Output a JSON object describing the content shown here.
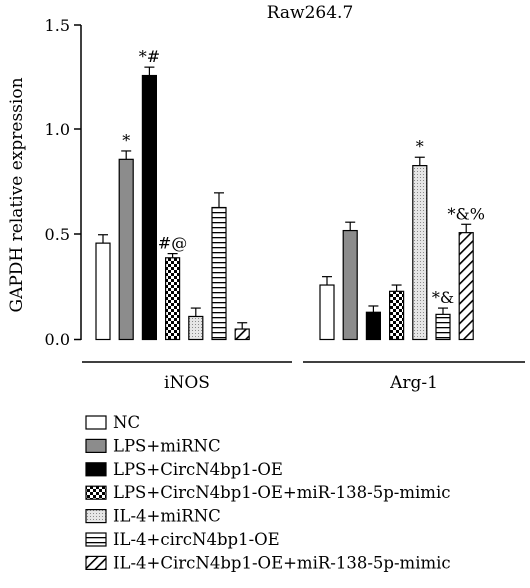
{
  "chart_data": {
    "type": "bar",
    "title": "Raw264.7",
    "ylabel": "GAPDH relative expression",
    "xlabel": "",
    "ylim": [
      0,
      1.5
    ],
    "yticks": [
      "0.0",
      "0.5",
      "1.0",
      "1.5"
    ],
    "groups": [
      "iNOS",
      "Arg-1"
    ],
    "grid": false,
    "legend_position": "bottom",
    "series": [
      {
        "name": "NC",
        "pattern": "white",
        "values": [
          0.46,
          0.26
        ],
        "errors": [
          0.04,
          0.04
        ],
        "annotations": [
          "",
          ""
        ]
      },
      {
        "name": "LPS+miRNC",
        "pattern": "gray",
        "values": [
          0.86,
          0.52
        ],
        "errors": [
          0.04,
          0.04
        ],
        "annotations": [
          "*",
          ""
        ]
      },
      {
        "name": "LPS+CircN4bp1-OE",
        "pattern": "black",
        "values": [
          1.26,
          0.13
        ],
        "errors": [
          0.04,
          0.03
        ],
        "annotations": [
          "*#",
          ""
        ]
      },
      {
        "name": "LPS+CircN4bp1-OE+miR-138-5p-mimic",
        "pattern": "checker",
        "values": [
          0.39,
          0.23
        ],
        "errors": [
          0.02,
          0.03
        ],
        "annotations": [
          "#@",
          ""
        ]
      },
      {
        "name": "IL-4+miRNC",
        "pattern": "dots",
        "values": [
          0.11,
          0.83
        ],
        "errors": [
          0.04,
          0.04
        ],
        "annotations": [
          "",
          "*"
        ]
      },
      {
        "name": "IL-4+circN4bp1-OE",
        "pattern": "hlines",
        "values": [
          0.63,
          0.12
        ],
        "errors": [
          0.07,
          0.03
        ],
        "annotations": [
          "",
          "*&"
        ]
      },
      {
        "name": "IL-4+CircN4bp1-OE+miR-138-5p-mimic",
        "pattern": "diag",
        "values": [
          0.05,
          0.51
        ],
        "errors": [
          0.03,
          0.04
        ],
        "annotations": [
          "",
          "*&%"
        ]
      }
    ]
  }
}
